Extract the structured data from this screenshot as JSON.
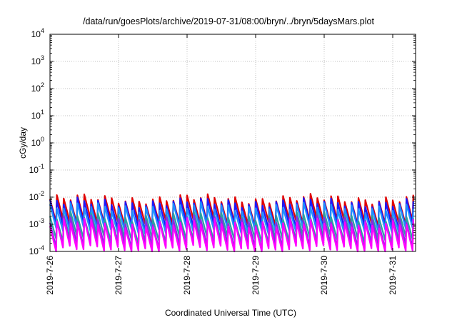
{
  "chart_data": {
    "type": "line",
    "title": "/data/run/goesPlots/archive/2019-07-31/08:00/bryn/../bryn/5daysMars.plot",
    "xlabel": "Coordinated Universal Time (UTC)",
    "ylabel": "cGy/day",
    "yscale": "log",
    "ylim": [
      0.0001,
      10000
    ],
    "xlim": [
      "2019-07-26T00:00",
      "2019-07-31T08:00"
    ],
    "grid": true,
    "x_ticks": [
      "2019-7-26",
      "2019-7-27",
      "2019-7-28",
      "2019-7-29",
      "2019-7-30",
      "2019-7-31"
    ],
    "y_ticks": [
      {
        "base": "10",
        "exp": "-4"
      },
      {
        "base": "10",
        "exp": "-3"
      },
      {
        "base": "10",
        "exp": "-2"
      },
      {
        "base": "10",
        "exp": "-1"
      },
      {
        "base": "10",
        "exp": "0"
      },
      {
        "base": "10",
        "exp": "1"
      },
      {
        "base": "10",
        "exp": "2"
      },
      {
        "base": "10",
        "exp": "3"
      },
      {
        "base": "10",
        "exp": "4"
      }
    ],
    "series_pattern": {
      "period_days": 0.1,
      "first_peak": "2019-07-26T00:00",
      "note_free": true
    },
    "series": [
      {
        "color": "#e00000",
        "peak": 0.0085,
        "trough": 0.0012
      },
      {
        "color": "#1a1aff",
        "peak": 0.0062,
        "trough": 0.0008
      },
      {
        "color": "#1e90ff",
        "peak": 0.0042,
        "trough": 0.0006
      },
      {
        "color": "#2ca0a0",
        "peak": 0.0019,
        "trough": 0.00028
      },
      {
        "color": "#8a2be2",
        "peak": 0.0014,
        "trough": 0.00017
      },
      {
        "color": "#ff00ff",
        "peak": 0.0011,
        "trough": 0.00012
      }
    ]
  }
}
